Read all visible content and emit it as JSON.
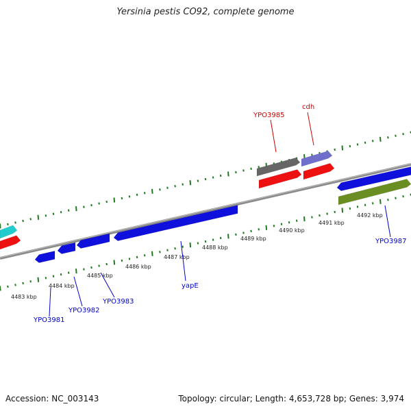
{
  "title": "Yersinia pestis CO92, complete genome",
  "footer": {
    "accession": "Accession: NC_003143",
    "topology": "Topology: circular; Length: 4,653,728 bp; Genes: 3,974"
  },
  "colors": {
    "backbone": "#8c8c8c",
    "tick": "#1f7a1f",
    "label_blue": "#0000cc",
    "label_red": "#cc0000",
    "gene_blue": "#1010dd",
    "gene_red": "#ee1111",
    "gene_cyan": "#22cccc",
    "gene_gray": "#666666",
    "gene_lavender": "#7070cc",
    "gene_olive": "#6b8e23"
  },
  "scale_labels": [
    "4483 kbp",
    "4484 kbp",
    "4485 kbp",
    "4486 kbp",
    "4487 kbp",
    "4488 kbp",
    "4489 kbp",
    "4490 kbp",
    "4491 kbp",
    "4492 kbp"
  ],
  "gene_labels": [
    {
      "text": "YPO3981",
      "color": "blue"
    },
    {
      "text": "YPO3982",
      "color": "blue"
    },
    {
      "text": "YPO3983",
      "color": "blue"
    },
    {
      "text": "yapE",
      "color": "blue"
    },
    {
      "text": "YPO3985",
      "color": "red"
    },
    {
      "text": "cdh",
      "color": "red"
    },
    {
      "text": "YPO3987",
      "color": "blue"
    }
  ]
}
